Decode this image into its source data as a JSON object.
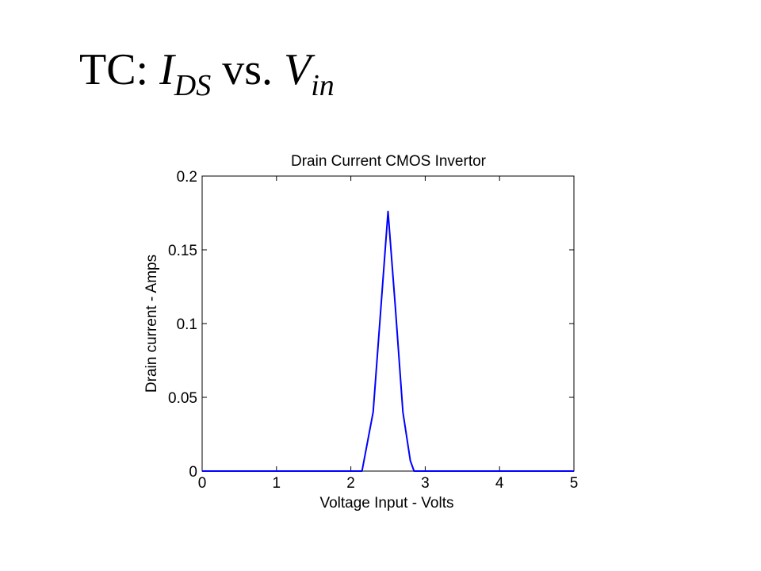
{
  "slide": {
    "title_prefix": "TC: ",
    "title_var1": "I",
    "title_sub1": "DS",
    "title_mid": " vs. ",
    "title_var2": "V",
    "title_sub2": "in"
  },
  "chart_data": {
    "type": "line",
    "title": "Drain Current CMOS Invertor",
    "xlabel": "Voltage Input - Volts",
    "ylabel": "Drain current - Amps",
    "xlim": [
      0,
      5
    ],
    "ylim": [
      0,
      0.2
    ],
    "xticks": [
      0,
      1,
      2,
      3,
      4,
      5
    ],
    "xtick_labels": [
      "0",
      "1",
      "2",
      "3",
      "4",
      "5"
    ],
    "yticks": [
      0,
      0.05,
      0.1,
      0.15,
      0.2
    ],
    "ytick_labels": [
      "0",
      "0.05",
      "0.1",
      "0.15",
      "0.2"
    ],
    "grid": false,
    "series": [
      {
        "color": "#0000ff",
        "x": [
          0,
          2.15,
          2.3,
          2.5,
          2.6,
          2.7,
          2.8,
          2.85,
          5
        ],
        "y": [
          0,
          0,
          0.04,
          0.176,
          0.11,
          0.04,
          0.007,
          0,
          0
        ]
      }
    ]
  }
}
